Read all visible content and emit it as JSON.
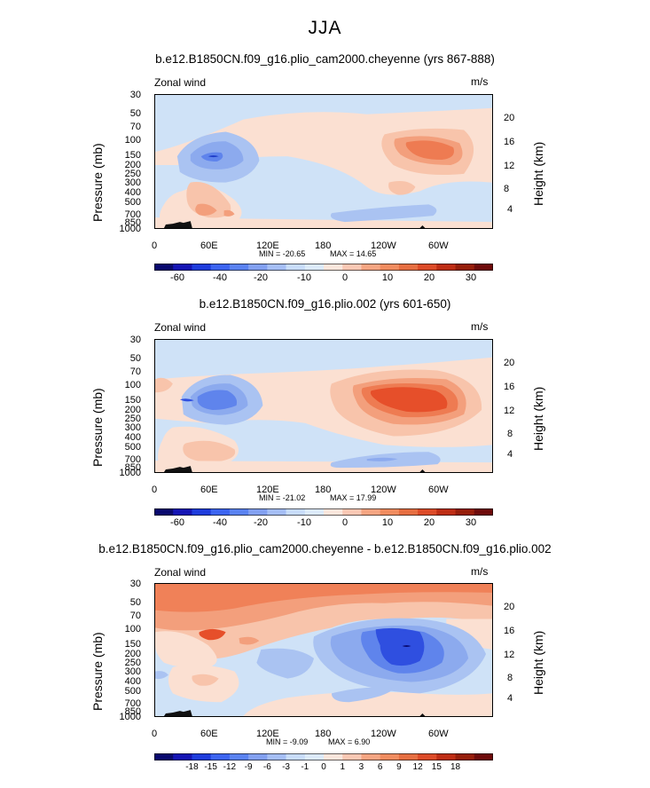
{
  "main_title": "JJA",
  "chart_data": [
    {
      "type": "contour",
      "title": "b.e12.B1850CN.f09_g16.plio_cam2000.cheyenne (yrs 867-888)",
      "variable": "Zonal wind",
      "units": "m/s",
      "ylabel": "Pressure (mb)",
      "ylabel_right": "Height (km)",
      "x_ticks": [
        "0",
        "60E",
        "120E",
        "180",
        "120W",
        "60W"
      ],
      "y_ticks": [
        "30",
        "50",
        "70",
        "100",
        "150",
        "200",
        "250",
        "300",
        "400",
        "500",
        "700",
        "850",
        "1000"
      ],
      "y_ticks_right": [
        "20",
        "16",
        "12",
        "8",
        "4"
      ],
      "min_label": "MIN = -20.65",
      "max_label": "MAX = 14.65",
      "colorbar": {
        "ticks": [
          "-60",
          "-40",
          "-20",
          "-10",
          "0",
          "10",
          "20",
          "30"
        ]
      }
    },
    {
      "type": "contour",
      "title": "b.e12.B1850CN.f09_g16.plio.002 (yrs 601-650)",
      "variable": "Zonal wind",
      "units": "m/s",
      "ylabel": "Pressure (mb)",
      "ylabel_right": "Height (km)",
      "x_ticks": [
        "0",
        "60E",
        "120E",
        "180",
        "120W",
        "60W"
      ],
      "y_ticks": [
        "30",
        "50",
        "70",
        "100",
        "150",
        "200",
        "250",
        "300",
        "400",
        "500",
        "700",
        "850",
        "1000"
      ],
      "y_ticks_right": [
        "20",
        "16",
        "12",
        "8",
        "4"
      ],
      "min_label": "MIN = -21.02",
      "max_label": "MAX = 17.99",
      "colorbar": {
        "ticks": [
          "-60",
          "-40",
          "-20",
          "-10",
          "0",
          "10",
          "20",
          "30"
        ]
      }
    },
    {
      "type": "contour",
      "title": "b.e12.B1850CN.f09_g16.plio_cam2000.cheyenne - b.e12.B1850CN.f09_g16.plio.002",
      "variable": "Zonal wind",
      "units": "m/s",
      "ylabel": "Pressure (mb)",
      "ylabel_right": "Height (km)",
      "x_ticks": [
        "0",
        "60E",
        "120E",
        "180",
        "120W",
        "60W"
      ],
      "y_ticks": [
        "30",
        "50",
        "70",
        "100",
        "150",
        "200",
        "250",
        "300",
        "400",
        "500",
        "700",
        "850",
        "1000"
      ],
      "y_ticks_right": [
        "20",
        "16",
        "12",
        "8",
        "4"
      ],
      "min_label": "MIN = -9.09",
      "max_label": "MAX = 6.90",
      "colorbar": {
        "ticks": [
          "-18",
          "-15",
          "-12",
          "-9",
          "-6",
          "-3",
          "-1",
          "0",
          "1",
          "3",
          "6",
          "9",
          "12",
          "15",
          "18"
        ]
      }
    }
  ],
  "colorbar_colors": [
    "#08086e",
    "#1414b4",
    "#1e3cdc",
    "#3c64f0",
    "#5a82f0",
    "#82a0f0",
    "#a5bef5",
    "#c8dcfa",
    "#dceafa",
    "#fae6dc",
    "#fac8b4",
    "#f5a582",
    "#f08c5f",
    "#e66e41",
    "#dc4b28",
    "#be2d14",
    "#961e0a",
    "#6e0a0a"
  ],
  "colors": {
    "bg_neutral": "#cfe2f7",
    "neg1": "#aac3f2",
    "neg2": "#8caaee",
    "neg3": "#5f84ec",
    "neg4": "#2f4fe0",
    "neg5": "#1e3cc8",
    "pos1": "#fbe0d2",
    "pos2": "#f8c4ab",
    "pos3": "#f39f7c",
    "pos4": "#ee7b52",
    "pos5": "#e64f2a",
    "topo": "#111111"
  }
}
